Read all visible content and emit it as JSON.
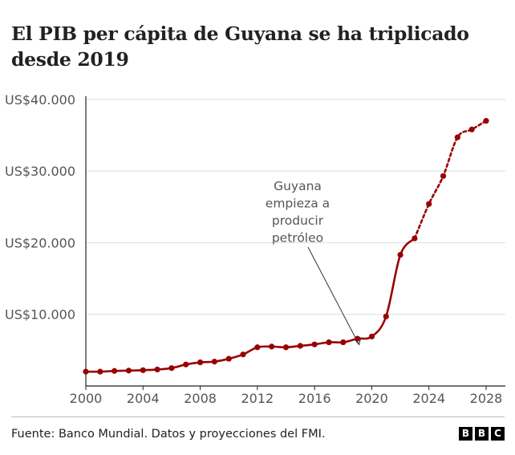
{
  "title": "El PIB per cápita de Guyana se ha triplicado desde 2019",
  "source": "Fuente: Banco Mundial. Datos y proyecciones del FMI.",
  "logo": {
    "letters": [
      "B",
      "B",
      "C"
    ]
  },
  "colors": {
    "series": "#990000",
    "grid": "#dddddd",
    "axis": "#222222",
    "text": "#555555"
  },
  "chart_data": {
    "type": "line",
    "title": "El PIB per cápita de Guyana se ha triplicado desde 2019",
    "xlabel": "",
    "ylabel": "",
    "xlim": [
      2000,
      2028
    ],
    "ylim": [
      0,
      40000
    ],
    "x_ticks": [
      "2000",
      "2004",
      "2008",
      "2012",
      "2016",
      "2020",
      "2024",
      "2028"
    ],
    "y_ticks": [
      {
        "value": 10000,
        "label": "US$10.000"
      },
      {
        "value": 20000,
        "label": "US$20.000"
      },
      {
        "value": 30000,
        "label": "US$30.000"
      },
      {
        "value": 40000,
        "label": "US$40.000"
      }
    ],
    "grid": "horizontal",
    "series": [
      {
        "name": "",
        "style": "solid",
        "x": [
          2000,
          2001,
          2002,
          2003,
          2004,
          2005,
          2006,
          2007,
          2008,
          2009,
          2010,
          2011,
          2012,
          2013,
          2014,
          2015,
          2016,
          2017,
          2018,
          2019,
          2020,
          2021,
          2022,
          2023
        ],
        "y": [
          2000,
          2000,
          2100,
          2150,
          2200,
          2300,
          2500,
          3000,
          3300,
          3400,
          3800,
          4400,
          5400,
          5500,
          5400,
          5600,
          5800,
          6100,
          6100,
          6600,
          6900,
          9700,
          18300,
          20600
        ]
      },
      {
        "name": "",
        "style": "dashed",
        "x": [
          2023,
          2024,
          2025,
          2026,
          2027,
          2028
        ],
        "y": [
          20600,
          25400,
          29300,
          34700,
          35800,
          37000
        ]
      }
    ],
    "annotations": [
      {
        "text": [
          "Guyana",
          "empieza a",
          "producir",
          "petróleo"
        ],
        "x": 2019,
        "y": 7000
      }
    ]
  }
}
